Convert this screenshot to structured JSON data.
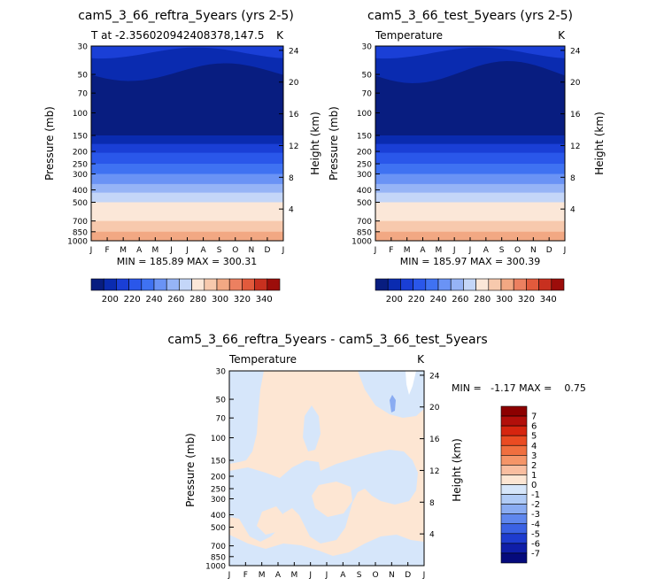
{
  "chart_data": [
    {
      "type": "heatmap",
      "title": "cam5_3_66_reftra_5years (yrs 2-5)",
      "subtitle_left": "T at -2.356020942408378,147.5",
      "subtitle_right": "K",
      "xlabel": "",
      "ylabel": "Pressure (mb)",
      "y2label": "Height (km)",
      "x_ticks": [
        "J",
        "F",
        "M",
        "A",
        "M",
        "J",
        "J",
        "A",
        "S",
        "O",
        "N",
        "D",
        "J"
      ],
      "y_ticks": [
        "30",
        "50",
        "70",
        "100",
        "150",
        "200",
        "250",
        "300",
        "400",
        "500",
        "700",
        "850",
        "1000"
      ],
      "y2_ticks": [
        "24",
        "20",
        "16",
        "12",
        "8",
        "4"
      ],
      "stats": "MIN = 185.89  MAX = 300.31",
      "colorbar_labels": [
        "200",
        "220",
        "240",
        "260",
        "280",
        "300",
        "320",
        "340"
      ]
    },
    {
      "type": "heatmap",
      "title": "cam5_3_66_test_5years (yrs 2-5)",
      "subtitle_left": "Temperature",
      "subtitle_right": "K",
      "xlabel": "",
      "ylabel": "Pressure (mb)",
      "y2label": "Height (km)",
      "x_ticks": [
        "J",
        "F",
        "M",
        "A",
        "M",
        "J",
        "J",
        "A",
        "S",
        "O",
        "N",
        "D",
        "J"
      ],
      "y_ticks": [
        "30",
        "50",
        "70",
        "100",
        "150",
        "200",
        "250",
        "300",
        "400",
        "500",
        "700",
        "850",
        "1000"
      ],
      "y2_ticks": [
        "24",
        "20",
        "16",
        "12",
        "8",
        "4"
      ],
      "stats": "MIN = 185.97  MAX = 300.39",
      "colorbar_labels": [
        "200",
        "220",
        "240",
        "260",
        "280",
        "300",
        "320",
        "340"
      ]
    },
    {
      "type": "heatmap",
      "title": "cam5_3_66_reftra_5years - cam5_3_66_test_5years",
      "subtitle_left": "Temperature",
      "subtitle_right": "K",
      "xlabel": "",
      "ylabel": "Pressure (mb)",
      "y2label": "Height (km)",
      "x_ticks": [
        "J",
        "F",
        "M",
        "A",
        "M",
        "J",
        "J",
        "A",
        "S",
        "O",
        "N",
        "D",
        "J"
      ],
      "y_ticks": [
        "30",
        "50",
        "70",
        "100",
        "150",
        "200",
        "250",
        "300",
        "400",
        "500",
        "700",
        "850",
        "1000"
      ],
      "y2_ticks": [
        "24",
        "20",
        "16",
        "12",
        "8",
        "4"
      ],
      "stats": "MIN =   -1.17 MAX =    0.75",
      "colorbar_labels": [
        "7",
        "6",
        "5",
        "4",
        "3",
        "2",
        "1",
        "0",
        "-1",
        "-2",
        "-3",
        "-4",
        "-5",
        "-6",
        "-7"
      ]
    }
  ],
  "colors": {
    "abs_scale": [
      "#081d80",
      "#0a2bb0",
      "#1a3fd6",
      "#2a57ea",
      "#3f72f2",
      "#6a93f5",
      "#96b4f6",
      "#c4d6f8",
      "#fbe7d8",
      "#f7c9ad",
      "#f2a883",
      "#ec8060",
      "#e25a3c",
      "#c8301f",
      "#9c0d0a"
    ],
    "diff_scale": [
      "#8c0000",
      "#b20f0a",
      "#d6250f",
      "#ea4b22",
      "#f06f3f",
      "#f59568",
      "#f9bea0",
      "#fde6d3",
      "#d6e6fa",
      "#b0cbf6",
      "#8aacf2",
      "#5f87ee",
      "#3b62e4",
      "#1e3ccf",
      "#0f1ea8",
      "#050a7c"
    ],
    "diff_pos": "#fde6d3",
    "diff_neg": "#d6e6fa",
    "diff_neg_strong": "#8aacf2"
  }
}
